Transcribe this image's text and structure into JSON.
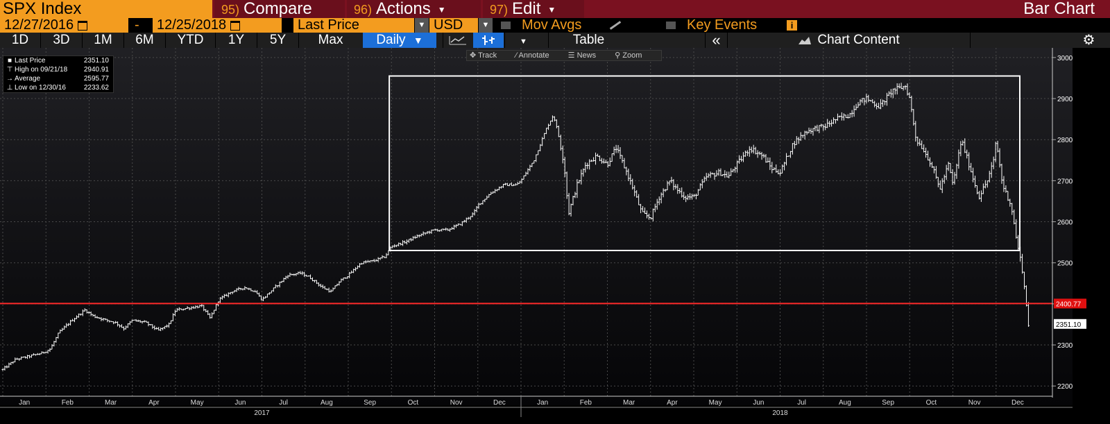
{
  "header": {
    "ticker": "SPX Index",
    "compare_num": "95)",
    "compare_label": "Compare",
    "actions_num": "96)",
    "actions_label": "Actions",
    "edit_num": "97)",
    "edit_label": "Edit",
    "chart_type": "Bar Chart"
  },
  "controls": {
    "start_date": "12/27/2016",
    "date_separator": "-",
    "end_date": "12/25/2018",
    "field": "Last Price",
    "currency": "USD",
    "mov_avgs_label": "Mov Avgs",
    "key_events_label": "Key Events",
    "info_badge": "i"
  },
  "toolbar": {
    "ranges": [
      "1D",
      "3D",
      "1M",
      "6M",
      "YTD",
      "1Y",
      "5Y",
      "Max"
    ],
    "periodicity": "Daily",
    "table_label": "Table",
    "collapse_glyph": "«",
    "chart_content_label": "Chart Content"
  },
  "chart_tools": {
    "track": "Track",
    "annotate": "Annotate",
    "news": "News",
    "zoom": "Zoom"
  },
  "legend": {
    "last_price_label": "Last Price",
    "last_price_value": "2351.10",
    "high_label": "High on 09/21/18",
    "high_value": "2940.91",
    "average_label": "Average",
    "average_value": "2595.77",
    "low_label": "Low on 12/30/16",
    "low_value": "2233.62"
  },
  "colors": {
    "accent_orange": "#f39c1f",
    "header_maroon": "#7a1120",
    "active_tab_blue": "#1c6fd8",
    "reference_line_red": "#ff2a2a",
    "bars": "#ffffff",
    "grid": "#444444"
  },
  "chart_data": {
    "type": "bar",
    "subtype": "ohlc_daily",
    "title": "",
    "ylim": [
      2175,
      3015
    ],
    "y_ticks": [
      2200,
      2300,
      2400,
      2500,
      2600,
      2700,
      2800,
      2900,
      3000
    ],
    "x_months": [
      "Jan",
      "Feb",
      "Mar",
      "Apr",
      "May",
      "Jun",
      "Jul",
      "Aug",
      "Sep",
      "Oct",
      "Nov",
      "Dec",
      "Jan",
      "Feb",
      "Mar",
      "Apr",
      "May",
      "Jun",
      "Jul",
      "Aug",
      "Sep",
      "Oct",
      "Nov",
      "Dec"
    ],
    "x_years": [
      "2017",
      "2018"
    ],
    "grid": true,
    "reference_line": {
      "value": 2400.77,
      "label": "2400.77"
    },
    "last_price_label": "2351.10",
    "highlight_box": {
      "x_from_month_index": 8.95,
      "x_to_month_index": 23.55,
      "y_from": 2530,
      "y_to": 2955
    },
    "monthly_closes": [
      {
        "month": "2017-01",
        "value": 2279
      },
      {
        "month": "2017-02",
        "value": 2364
      },
      {
        "month": "2017-03",
        "value": 2363
      },
      {
        "month": "2017-04",
        "value": 2384
      },
      {
        "month": "2017-05",
        "value": 2412
      },
      {
        "month": "2017-06",
        "value": 2423
      },
      {
        "month": "2017-07",
        "value": 2470
      },
      {
        "month": "2017-08",
        "value": 2472
      },
      {
        "month": "2017-09",
        "value": 2519
      },
      {
        "month": "2017-10",
        "value": 2575
      },
      {
        "month": "2017-11",
        "value": 2648
      },
      {
        "month": "2017-12",
        "value": 2674
      },
      {
        "month": "2018-01",
        "value": 2824
      },
      {
        "month": "2018-02",
        "value": 2714
      },
      {
        "month": "2018-03",
        "value": 2641
      },
      {
        "month": "2018-04",
        "value": 2648
      },
      {
        "month": "2018-05",
        "value": 2705
      },
      {
        "month": "2018-06",
        "value": 2718
      },
      {
        "month": "2018-07",
        "value": 2816
      },
      {
        "month": "2018-08",
        "value": 2902
      },
      {
        "month": "2018-09",
        "value": 2914
      },
      {
        "month": "2018-10",
        "value": 2712
      },
      {
        "month": "2018-11",
        "value": 2760
      },
      {
        "month": "2018-12",
        "value": 2351
      }
    ],
    "anchors": [
      [
        0.0,
        2240
      ],
      [
        0.3,
        2265
      ],
      [
        0.6,
        2272
      ],
      [
        0.9,
        2280
      ],
      [
        1.1,
        2290
      ],
      [
        1.3,
        2330
      ],
      [
        1.6,
        2360
      ],
      [
        1.9,
        2385
      ],
      [
        2.1,
        2370
      ],
      [
        2.4,
        2360
      ],
      [
        2.6,
        2355
      ],
      [
        2.8,
        2340
      ],
      [
        3.0,
        2360
      ],
      [
        3.3,
        2355
      ],
      [
        3.6,
        2335
      ],
      [
        3.85,
        2350
      ],
      [
        4.0,
        2385
      ],
      [
        4.3,
        2390
      ],
      [
        4.6,
        2395
      ],
      [
        4.8,
        2365
      ],
      [
        5.0,
        2410
      ],
      [
        5.3,
        2430
      ],
      [
        5.6,
        2440
      ],
      [
        5.85,
        2430
      ],
      [
        6.0,
        2410
      ],
      [
        6.3,
        2440
      ],
      [
        6.6,
        2470
      ],
      [
        6.9,
        2475
      ],
      [
        7.1,
        2465
      ],
      [
        7.4,
        2440
      ],
      [
        7.6,
        2430
      ],
      [
        7.8,
        2455
      ],
      [
        8.0,
        2470
      ],
      [
        8.3,
        2500
      ],
      [
        8.6,
        2505
      ],
      [
        8.85,
        2515
      ],
      [
        9.0,
        2540
      ],
      [
        9.3,
        2550
      ],
      [
        9.6,
        2565
      ],
      [
        9.85,
        2575
      ],
      [
        10.0,
        2580
      ],
      [
        10.3,
        2580
      ],
      [
        10.6,
        2595
      ],
      [
        10.9,
        2620
      ],
      [
        11.0,
        2640
      ],
      [
        11.3,
        2670
      ],
      [
        11.6,
        2690
      ],
      [
        11.9,
        2690
      ],
      [
        12.0,
        2700
      ],
      [
        12.3,
        2750
      ],
      [
        12.6,
        2830
      ],
      [
        12.75,
        2860
      ],
      [
        12.85,
        2820
      ],
      [
        13.0,
        2740
      ],
      [
        13.1,
        2620
      ],
      [
        13.3,
        2690
      ],
      [
        13.5,
        2740
      ],
      [
        13.75,
        2760
      ],
      [
        14.0,
        2740
      ],
      [
        14.2,
        2780
      ],
      [
        14.45,
        2720
      ],
      [
        14.6,
        2680
      ],
      [
        14.8,
        2620
      ],
      [
        15.0,
        2610
      ],
      [
        15.2,
        2660
      ],
      [
        15.45,
        2700
      ],
      [
        15.6,
        2680
      ],
      [
        15.8,
        2660
      ],
      [
        16.0,
        2660
      ],
      [
        16.3,
        2710
      ],
      [
        16.6,
        2720
      ],
      [
        16.8,
        2710
      ],
      [
        17.0,
        2740
      ],
      [
        17.3,
        2780
      ],
      [
        17.6,
        2760
      ],
      [
        17.8,
        2730
      ],
      [
        18.0,
        2720
      ],
      [
        18.3,
        2790
      ],
      [
        18.6,
        2820
      ],
      [
        18.9,
        2830
      ],
      [
        19.0,
        2830
      ],
      [
        19.3,
        2850
      ],
      [
        19.6,
        2860
      ],
      [
        19.8,
        2890
      ],
      [
        20.0,
        2900
      ],
      [
        20.3,
        2880
      ],
      [
        20.6,
        2920
      ],
      [
        20.9,
        2930
      ],
      [
        21.0,
        2900
      ],
      [
        21.15,
        2800
      ],
      [
        21.3,
        2780
      ],
      [
        21.5,
        2740
      ],
      [
        21.7,
        2680
      ],
      [
        21.9,
        2740
      ],
      [
        22.0,
        2690
      ],
      [
        22.2,
        2800
      ],
      [
        22.4,
        2730
      ],
      [
        22.6,
        2660
      ],
      [
        22.8,
        2700
      ],
      [
        22.95,
        2750
      ],
      [
        23.0,
        2800
      ],
      [
        23.15,
        2690
      ],
      [
        23.35,
        2640
      ],
      [
        23.5,
        2540
      ],
      [
        23.6,
        2490
      ],
      [
        23.7,
        2400
      ],
      [
        23.75,
        2351
      ]
    ]
  }
}
